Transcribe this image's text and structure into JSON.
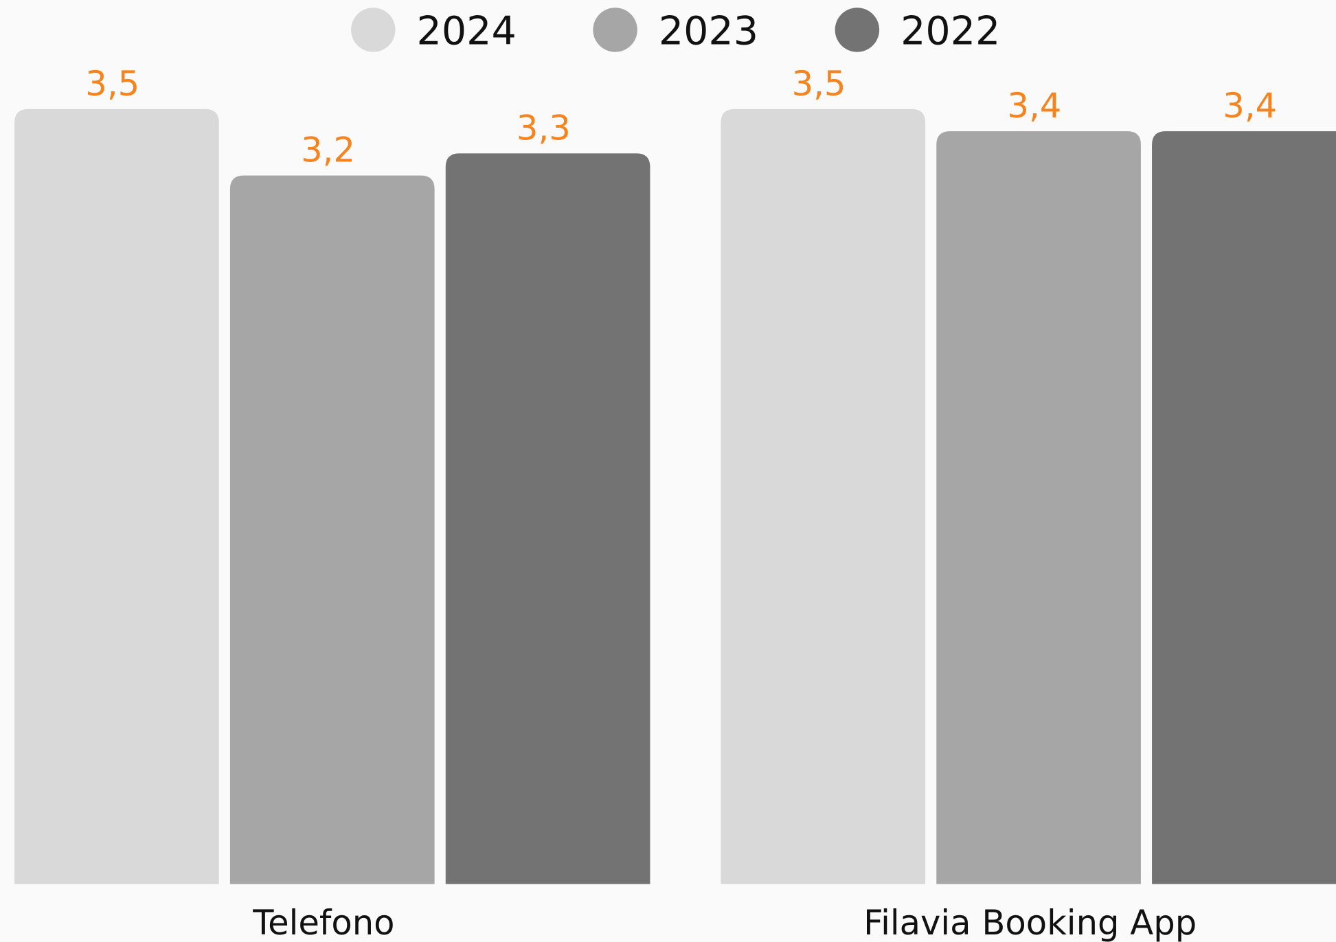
{
  "chart_data": {
    "type": "bar",
    "categories": [
      "Telefono",
      "Filavia Booking App"
    ],
    "series": [
      {
        "name": "2024",
        "color": "#d9d9d9",
        "values": [
          3.5,
          3.5
        ],
        "value_labels": [
          "3,5",
          "3,5"
        ]
      },
      {
        "name": "2023",
        "color": "#a6a6a6",
        "values": [
          3.2,
          3.4
        ],
        "value_labels": [
          "3,2",
          "3,4"
        ]
      },
      {
        "name": "2022",
        "color": "#737373",
        "values": [
          3.3,
          3.4
        ],
        "value_labels": [
          "3,3",
          "3,4"
        ]
      }
    ],
    "value_label_color": "#f5841f"
  }
}
